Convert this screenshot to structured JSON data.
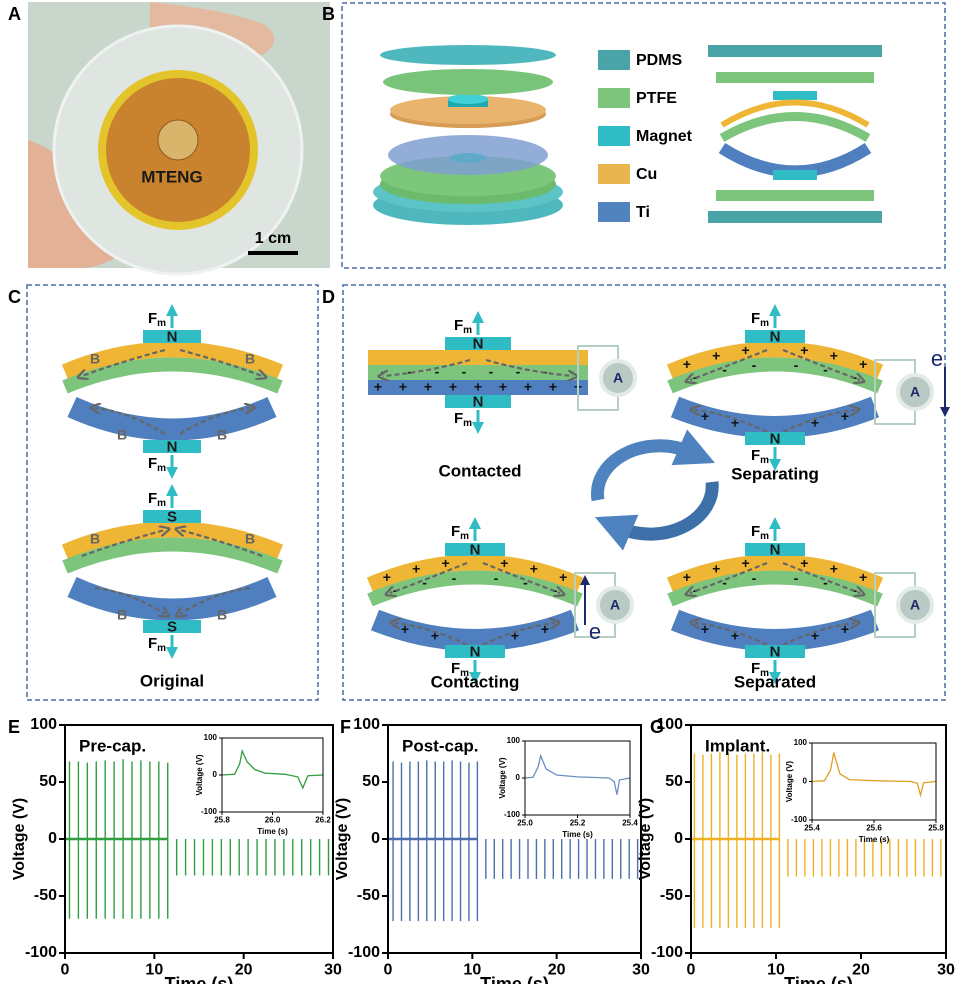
{
  "panel_labels": [
    "A",
    "B",
    "C",
    "D",
    "E",
    "F",
    "G"
  ],
  "photo": {
    "device": "MTENG",
    "scale": "1 cm"
  },
  "legend": [
    "PDMS",
    "PTFE",
    "Magnet",
    "Cu",
    "Ti"
  ],
  "symbols": {
    "force": "F",
    "force_sub": "m",
    "north": "N",
    "south": "S",
    "field": "B",
    "ammeter": "A",
    "electron": "e",
    "plus": "+",
    "minus": "-"
  },
  "panel_c": {
    "caption": "Original"
  },
  "panel_d": {
    "states": [
      "Contacted",
      "Separating",
      "Contacting",
      "Separated"
    ]
  },
  "chart_data": [
    {
      "type": "spike",
      "xlabel": "Time (s)",
      "ylabel": "Voltage (V)",
      "annotation": "Pre-cap.",
      "xlim": [
        0,
        30
      ],
      "xticks": [
        0,
        10,
        20,
        30
      ],
      "ylim": [
        -100,
        100
      ],
      "yticks": [
        -100,
        -50,
        0,
        50,
        100
      ],
      "series": [
        {
          "color": "#2e9e3e",
          "x": [
            0.5,
            1.5,
            2.5,
            3.5,
            4.5,
            5.5,
            6.5,
            7.5,
            8.5,
            9.5,
            10.5,
            11.5
          ],
          "values": [
            68,
            68,
            67,
            68,
            69,
            68,
            70,
            68,
            69,
            68,
            68,
            67
          ]
        },
        {
          "color": "#2e9e3e",
          "x": [
            0.5,
            1.5,
            2.5,
            3.5,
            4.5,
            5.5,
            6.5,
            7.5,
            8.5,
            9.5,
            10.5,
            11.5,
            12.5,
            13.5,
            14.5,
            15.5,
            16.5,
            17.5,
            18.5,
            19.5,
            20.5,
            21.5,
            22.5,
            23.5,
            24.5,
            25.5,
            26.5,
            27.5,
            28.5,
            29.5
          ],
          "values": [
            -70,
            -70,
            -70,
            -70,
            -70,
            -70,
            -70,
            -70,
            -70,
            -70,
            -70,
            -70,
            -32,
            -32,
            -32,
            -32,
            -32,
            -32,
            -32,
            -32,
            -32,
            -32,
            -32,
            -32,
            -32,
            -32,
            -32,
            -32,
            -32,
            -32
          ]
        }
      ]
    },
    {
      "type": "line",
      "xlabel": "Time (s)",
      "ylabel": "Voltage (V)",
      "xlim": [
        25.8,
        26.2
      ],
      "xticks": [
        25.8,
        {
          "value": 26,
          "label": "26.0"
        },
        26.2
      ],
      "ylim": [
        -100,
        100
      ],
      "yticks": [
        -100,
        0,
        100
      ],
      "series": [
        {
          "color": "#2e9e3e",
          "x": [
            25.8,
            25.85,
            25.87,
            25.88,
            25.9,
            25.93,
            25.97,
            26.05,
            26.1,
            26.12,
            26.14,
            26.2
          ],
          "values": [
            0,
            2,
            30,
            65,
            35,
            15,
            5,
            2,
            -5,
            -35,
            -2,
            0
          ]
        }
      ]
    },
    {
      "type": "spike",
      "xlabel": "Time (s)",
      "ylabel": "Voltage (V)",
      "annotation": "Post-cap.",
      "xlim": [
        0,
        30
      ],
      "xticks": [
        0,
        10,
        20,
        30
      ],
      "ylim": [
        -100,
        100
      ],
      "yticks": [
        -100,
        -50,
        0,
        50,
        100
      ],
      "series": [
        {
          "color": "#4a6fae",
          "x": [
            0.6,
            1.6,
            2.6,
            3.6,
            4.6,
            5.6,
            6.6,
            7.6,
            8.6,
            9.6,
            10.6
          ],
          "values": [
            68,
            67,
            68,
            68,
            69,
            68,
            68,
            69,
            68,
            67,
            68
          ]
        },
        {
          "color": "#4a6fae",
          "x": [
            0.6,
            1.6,
            2.6,
            3.6,
            4.6,
            5.6,
            6.6,
            7.6,
            8.6,
            9.6,
            10.6,
            11.6,
            12.6,
            13.6,
            14.6,
            15.6,
            16.6,
            17.6,
            18.6,
            19.6,
            20.6,
            21.6,
            22.6,
            23.6,
            24.6,
            25.6,
            26.6,
            27.6,
            28.6,
            29.6
          ],
          "values": [
            -72,
            -72,
            -72,
            -72,
            -72,
            -72,
            -72,
            -72,
            -72,
            -72,
            -72,
            -35,
            -35,
            -35,
            -35,
            -35,
            -35,
            -35,
            -35,
            -35,
            -35,
            -35,
            -35,
            -35,
            -35,
            -35,
            -35,
            -35,
            -35,
            -35
          ]
        }
      ]
    },
    {
      "type": "line",
      "xlabel": "Time (s)",
      "ylabel": "Voltage (V)",
      "xlim": [
        25,
        25.4
      ],
      "xticks": [
        {
          "value": 25,
          "label": "25.0"
        },
        25.2,
        25.4
      ],
      "ylim": [
        -100,
        100
      ],
      "yticks": [
        -100,
        0,
        100
      ],
      "series": [
        {
          "color": "#6a90c0",
          "x": [
            25,
            25.03,
            25.05,
            25.06,
            25.08,
            25.12,
            25.2,
            25.32,
            25.34,
            25.35,
            25.36,
            25.4
          ],
          "values": [
            0,
            2,
            30,
            60,
            25,
            8,
            3,
            0,
            -10,
            -45,
            -5,
            0
          ]
        }
      ]
    },
    {
      "type": "spike",
      "xlabel": "Time (s)",
      "ylabel": "Voltage (V)",
      "annotation": "Implant.",
      "xlim": [
        0,
        30
      ],
      "xticks": [
        0,
        10,
        20,
        30
      ],
      "ylim": [
        -100,
        100
      ],
      "yticks": [
        -100,
        -50,
        0,
        50,
        100
      ],
      "series": [
        {
          "color": "#f0b020",
          "x": [
            0.4,
            1.4,
            2.4,
            3.4,
            4.4,
            5.4,
            6.4,
            7.4,
            8.4,
            9.4,
            10.4
          ],
          "values": [
            75,
            74,
            75,
            76,
            75,
            74,
            75,
            75,
            76,
            74,
            75
          ]
        },
        {
          "color": "#f0b020",
          "x": [
            0.4,
            1.4,
            2.4,
            3.4,
            4.4,
            5.4,
            6.4,
            7.4,
            8.4,
            9.4,
            10.4,
            11.4,
            12.4,
            13.4,
            14.4,
            15.4,
            16.4,
            17.4,
            18.4,
            19.4,
            20.4,
            21.4,
            22.4,
            23.4,
            24.4,
            25.4,
            26.4,
            27.4,
            28.4,
            29.4
          ],
          "values": [
            -78,
            -78,
            -78,
            -78,
            -78,
            -78,
            -78,
            -78,
            -78,
            -78,
            -78,
            -33,
            -33,
            -33,
            -33,
            -33,
            -33,
            -33,
            -33,
            -33,
            -33,
            -33,
            -33,
            -33,
            -33,
            -33,
            -33,
            -33,
            -33,
            -33
          ]
        }
      ]
    },
    {
      "type": "line",
      "xlabel": "Time (s)",
      "ylabel": "Voltage (V)",
      "xlim": [
        25.4,
        25.8
      ],
      "xticks": [
        25.4,
        25.6,
        25.8
      ],
      "ylim": [
        -100,
        100
      ],
      "yticks": [
        -100,
        0,
        100
      ],
      "series": [
        {
          "color": "#e0a020",
          "x": [
            25.4,
            25.44,
            25.46,
            25.47,
            25.49,
            25.52,
            25.6,
            25.72,
            25.74,
            25.75,
            25.76,
            25.8
          ],
          "values": [
            0,
            2,
            30,
            75,
            20,
            5,
            2,
            0,
            -5,
            -35,
            -3,
            0
          ]
        }
      ]
    }
  ]
}
